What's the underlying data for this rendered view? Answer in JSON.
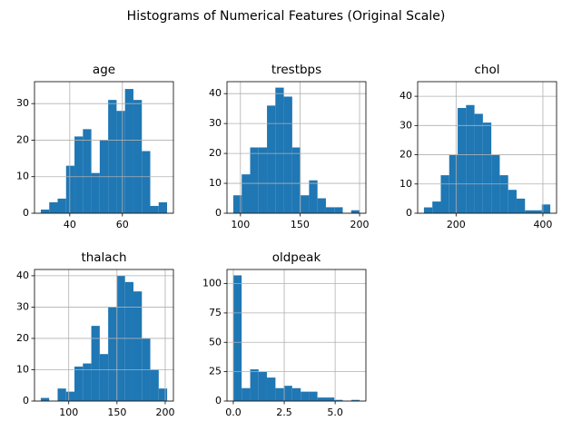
{
  "title": "Histograms of Numerical Features (Original Scale)",
  "chart_data": [
    {
      "type": "histogram",
      "title": "age",
      "color": "#1f77b4",
      "grid": true,
      "bins": [
        29,
        32.2,
        35.4,
        38.6,
        41.8,
        45,
        48.2,
        51.4,
        54.6,
        57.8,
        61,
        64.2,
        67.4,
        70.6,
        73.8,
        77
      ],
      "values": [
        1,
        3,
        4,
        13,
        21,
        23,
        11,
        20,
        31,
        28,
        34,
        31,
        17,
        2,
        3
      ],
      "xlim": [
        26.6,
        79.4
      ],
      "xticks": [
        40,
        60
      ],
      "ylim": [
        0,
        36
      ],
      "yticks": [
        0,
        10,
        20,
        30
      ]
    },
    {
      "type": "histogram",
      "title": "trestbps",
      "color": "#1f77b4",
      "grid": true,
      "bins": [
        94,
        101.07,
        108.13,
        115.2,
        122.27,
        129.33,
        136.4,
        143.47,
        150.53,
        157.6,
        164.67,
        171.73,
        178.8,
        185.87,
        192.93,
        200
      ],
      "values": [
        6,
        13,
        22,
        22,
        36,
        42,
        39,
        22,
        6,
        11,
        5,
        2,
        2,
        0,
        1
      ],
      "xlim": [
        88.7,
        205.3
      ],
      "xticks": [
        100,
        150,
        200
      ],
      "ylim": [
        0,
        44
      ],
      "yticks": [
        0,
        10,
        20,
        30,
        40
      ]
    },
    {
      "type": "histogram",
      "title": "chol",
      "color": "#1f77b4",
      "grid": true,
      "bins": [
        126,
        145.4,
        164.8,
        184.2,
        203.6,
        223,
        242.4,
        261.8,
        281.2,
        300.6,
        320,
        339.4,
        358.8,
        378.2,
        397.6,
        417
      ],
      "values": [
        2,
        4,
        13,
        20,
        36,
        37,
        34,
        31,
        20,
        13,
        8,
        5,
        1,
        1,
        3
      ],
      "xlim": [
        111.5,
        431.5
      ],
      "xticks": [
        200,
        400
      ],
      "ylim": [
        0,
        45
      ],
      "yticks": [
        0,
        10,
        20,
        30,
        40
      ]
    },
    {
      "type": "histogram",
      "title": "thalach",
      "color": "#1f77b4",
      "grid": true,
      "bins": [
        71,
        79.73,
        88.47,
        97.2,
        105.93,
        114.67,
        123.4,
        132.13,
        140.87,
        149.6,
        158.33,
        167.07,
        175.8,
        184.53,
        193.27,
        202
      ],
      "values": [
        1,
        0,
        4,
        3,
        11,
        12,
        24,
        15,
        30,
        40,
        38,
        35,
        20,
        10,
        4
      ],
      "xlim": [
        64.5,
        208.5
      ],
      "xticks": [
        100,
        150,
        200
      ],
      "ylim": [
        0,
        42
      ],
      "yticks": [
        0,
        10,
        20,
        30,
        40
      ]
    },
    {
      "type": "histogram",
      "title": "oldpeak",
      "color": "#1f77b4",
      "grid": true,
      "bins": [
        0,
        0.41,
        0.83,
        1.24,
        1.65,
        2.07,
        2.48,
        2.89,
        3.31,
        3.72,
        4.13,
        4.55,
        4.96,
        5.37,
        5.79,
        6.2
      ],
      "values": [
        107,
        11,
        27,
        25,
        20,
        11,
        13,
        11,
        8,
        8,
        3,
        3,
        1,
        0,
        1
      ],
      "xlim": [
        -0.31,
        6.51
      ],
      "xticks": [
        {
          "value": 0,
          "label": "0.0"
        },
        {
          "value": 2.5,
          "label": "2.5"
        },
        {
          "value": 5,
          "label": "5.0"
        }
      ],
      "ylim": [
        0,
        112
      ],
      "yticks": [
        0,
        25,
        50,
        75,
        100
      ]
    }
  ]
}
